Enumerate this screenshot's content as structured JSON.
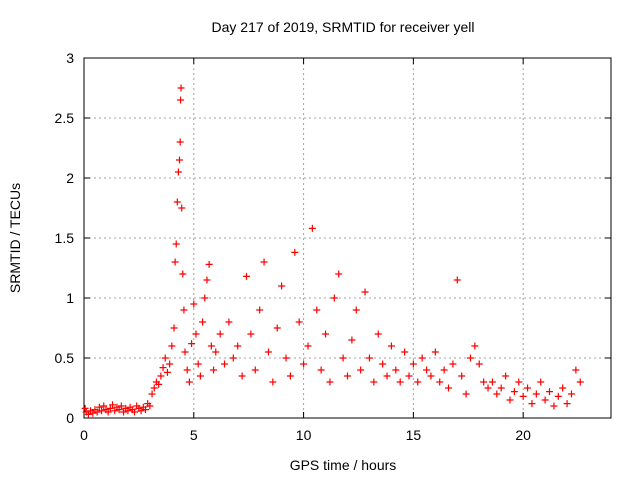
{
  "chart_data": {
    "type": "scatter",
    "title": "Day 217 of 2019, SRMTID for receiver yell",
    "xlabel": "GPS time / hours",
    "ylabel": "SRMTID / TECUs",
    "xlim": [
      0,
      24
    ],
    "ylim": [
      0,
      3
    ],
    "xticks": [
      0,
      5,
      10,
      15,
      20
    ],
    "yticks": [
      0,
      0.5,
      1,
      1.5,
      2,
      2.5,
      3
    ],
    "xtick_labels": [
      "0",
      "5",
      "10",
      "15",
      "20"
    ],
    "ytick_labels": [
      "0",
      "0.5",
      "1",
      "1.5",
      "2",
      "2.5",
      "3"
    ],
    "grid": true,
    "marker": "+",
    "marker_color": "#ff0000",
    "series": [
      {
        "name": "SRMTID",
        "points": [
          [
            0.05,
            0.08
          ],
          [
            0.1,
            0.05
          ],
          [
            0.2,
            0.03
          ],
          [
            0.3,
            0.06
          ],
          [
            0.4,
            0.04
          ],
          [
            0.5,
            0.07
          ],
          [
            0.6,
            0.05
          ],
          [
            0.7,
            0.09
          ],
          [
            0.8,
            0.06
          ],
          [
            0.9,
            0.1
          ],
          [
            1.0,
            0.07
          ],
          [
            1.1,
            0.05
          ],
          [
            1.2,
            0.08
          ],
          [
            1.3,
            0.11
          ],
          [
            1.4,
            0.06
          ],
          [
            1.5,
            0.09
          ],
          [
            1.6,
            0.07
          ],
          [
            1.7,
            0.1
          ],
          [
            1.8,
            0.05
          ],
          [
            1.9,
            0.08
          ],
          [
            2.0,
            0.06
          ],
          [
            2.1,
            0.09
          ],
          [
            2.2,
            0.07
          ],
          [
            2.3,
            0.05
          ],
          [
            2.4,
            0.1
          ],
          [
            2.5,
            0.08
          ],
          [
            2.6,
            0.06
          ],
          [
            2.7,
            0.09
          ],
          [
            2.8,
            0.07
          ],
          [
            2.9,
            0.12
          ],
          [
            3.0,
            0.1
          ],
          [
            3.1,
            0.2
          ],
          [
            3.2,
            0.25
          ],
          [
            3.3,
            0.3
          ],
          [
            3.4,
            0.28
          ],
          [
            3.5,
            0.35
          ],
          [
            3.6,
            0.42
          ],
          [
            3.7,
            0.5
          ],
          [
            3.8,
            0.38
          ],
          [
            3.9,
            0.45
          ],
          [
            4.0,
            0.6
          ],
          [
            4.1,
            0.75
          ],
          [
            4.15,
            1.3
          ],
          [
            4.2,
            1.45
          ],
          [
            4.25,
            1.8
          ],
          [
            4.3,
            2.05
          ],
          [
            4.35,
            2.15
          ],
          [
            4.38,
            2.3
          ],
          [
            4.4,
            2.65
          ],
          [
            4.42,
            2.75
          ],
          [
            4.45,
            1.75
          ],
          [
            4.5,
            1.2
          ],
          [
            4.55,
            0.9
          ],
          [
            4.6,
            0.55
          ],
          [
            4.7,
            0.4
          ],
          [
            4.8,
            0.3
          ],
          [
            4.9,
            0.62
          ],
          [
            5.0,
            0.95
          ],
          [
            5.1,
            0.7
          ],
          [
            5.2,
            0.45
          ],
          [
            5.3,
            0.35
          ],
          [
            5.4,
            0.8
          ],
          [
            5.5,
            1.0
          ],
          [
            5.6,
            1.15
          ],
          [
            5.7,
            1.28
          ],
          [
            5.8,
            0.6
          ],
          [
            5.9,
            0.4
          ],
          [
            6.0,
            0.55
          ],
          [
            6.2,
            0.7
          ],
          [
            6.4,
            0.45
          ],
          [
            6.6,
            0.8
          ],
          [
            6.8,
            0.5
          ],
          [
            7.0,
            0.6
          ],
          [
            7.2,
            0.35
          ],
          [
            7.4,
            1.18
          ],
          [
            7.6,
            0.7
          ],
          [
            7.8,
            0.4
          ],
          [
            8.0,
            0.9
          ],
          [
            8.2,
            1.3
          ],
          [
            8.4,
            0.55
          ],
          [
            8.6,
            0.3
          ],
          [
            8.8,
            0.75
          ],
          [
            9.0,
            1.1
          ],
          [
            9.2,
            0.5
          ],
          [
            9.4,
            0.35
          ],
          [
            9.6,
            1.38
          ],
          [
            9.8,
            0.8
          ],
          [
            10.0,
            0.45
          ],
          [
            10.2,
            0.6
          ],
          [
            10.4,
            1.58
          ],
          [
            10.6,
            0.9
          ],
          [
            10.8,
            0.4
          ],
          [
            11.0,
            0.7
          ],
          [
            11.2,
            0.3
          ],
          [
            11.4,
            1.0
          ],
          [
            11.6,
            1.2
          ],
          [
            11.8,
            0.5
          ],
          [
            12.0,
            0.35
          ],
          [
            12.2,
            0.65
          ],
          [
            12.4,
            0.9
          ],
          [
            12.6,
            0.4
          ],
          [
            12.8,
            1.05
          ],
          [
            13.0,
            0.5
          ],
          [
            13.2,
            0.3
          ],
          [
            13.4,
            0.7
          ],
          [
            13.6,
            0.45
          ],
          [
            13.8,
            0.35
          ],
          [
            14.0,
            0.6
          ],
          [
            14.2,
            0.4
          ],
          [
            14.4,
            0.3
          ],
          [
            14.6,
            0.55
          ],
          [
            14.8,
            0.35
          ],
          [
            15.0,
            0.45
          ],
          [
            15.2,
            0.3
          ],
          [
            15.4,
            0.5
          ],
          [
            15.6,
            0.4
          ],
          [
            15.8,
            0.35
          ],
          [
            16.0,
            0.55
          ],
          [
            16.2,
            0.3
          ],
          [
            16.4,
            0.4
          ],
          [
            16.6,
            0.25
          ],
          [
            16.8,
            0.45
          ],
          [
            17.0,
            1.15
          ],
          [
            17.2,
            0.35
          ],
          [
            17.4,
            0.2
          ],
          [
            17.6,
            0.5
          ],
          [
            17.8,
            0.6
          ],
          [
            18.0,
            0.45
          ],
          [
            18.2,
            0.3
          ],
          [
            18.4,
            0.25
          ],
          [
            18.6,
            0.3
          ],
          [
            18.8,
            0.2
          ],
          [
            19.0,
            0.25
          ],
          [
            19.2,
            0.35
          ],
          [
            19.4,
            0.15
          ],
          [
            19.6,
            0.22
          ],
          [
            19.8,
            0.3
          ],
          [
            20.0,
            0.18
          ],
          [
            20.2,
            0.25
          ],
          [
            20.4,
            0.12
          ],
          [
            20.6,
            0.2
          ],
          [
            20.8,
            0.3
          ],
          [
            21.0,
            0.15
          ],
          [
            21.2,
            0.22
          ],
          [
            21.4,
            0.1
          ],
          [
            21.6,
            0.18
          ],
          [
            21.8,
            0.25
          ],
          [
            22.0,
            0.12
          ],
          [
            22.2,
            0.2
          ],
          [
            22.4,
            0.4
          ],
          [
            22.6,
            0.3
          ]
        ]
      }
    ]
  }
}
